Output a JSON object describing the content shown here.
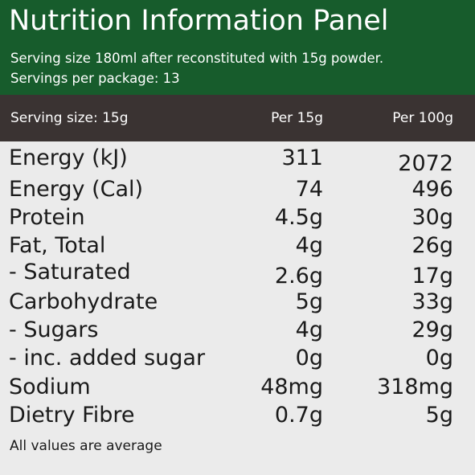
{
  "header": {
    "title": "Nutrition Information Panel",
    "serving_line": "Serving size 180ml after reconstituted with 15g powder.",
    "servings_line": "Servings per package: 13"
  },
  "columns": {
    "label": "Serving size: 15g",
    "col1": "Per 15g",
    "col2": "Per 100g"
  },
  "rows": [
    {
      "name": "Energy (kJ)",
      "per_serving": "311",
      "per_100g": "2072"
    },
    {
      "name": "Energy (Cal)",
      "per_serving": "74",
      "per_100g": "496"
    },
    {
      "name": "Protein",
      "per_serving": "4.5g",
      "per_100g": "30g"
    },
    {
      "name": "Fat, Total",
      "per_serving": "4g",
      "per_100g": "26g"
    },
    {
      "name": "- Saturated",
      "per_serving": "2.6g",
      "per_100g": "17g"
    },
    {
      "name": "Carbohydrate",
      "per_serving": "5g",
      "per_100g": "33g"
    },
    {
      "name": "- Sugars",
      "per_serving": "4g",
      "per_100g": "29g"
    },
    {
      "name": "- inc. added sugar",
      "per_serving": "0g",
      "per_100g": "0g"
    },
    {
      "name": "Sodium",
      "per_serving": "48mg",
      "per_100g": "318mg"
    },
    {
      "name": "Dietry Fibre",
      "per_serving": "0.7g",
      "per_100g": "5g"
    }
  ],
  "footnote": "All values are average",
  "colors": {
    "header_bg": "#175c2c",
    "column_header_bg": "#3a3332",
    "body_bg": "#ebebeb"
  }
}
